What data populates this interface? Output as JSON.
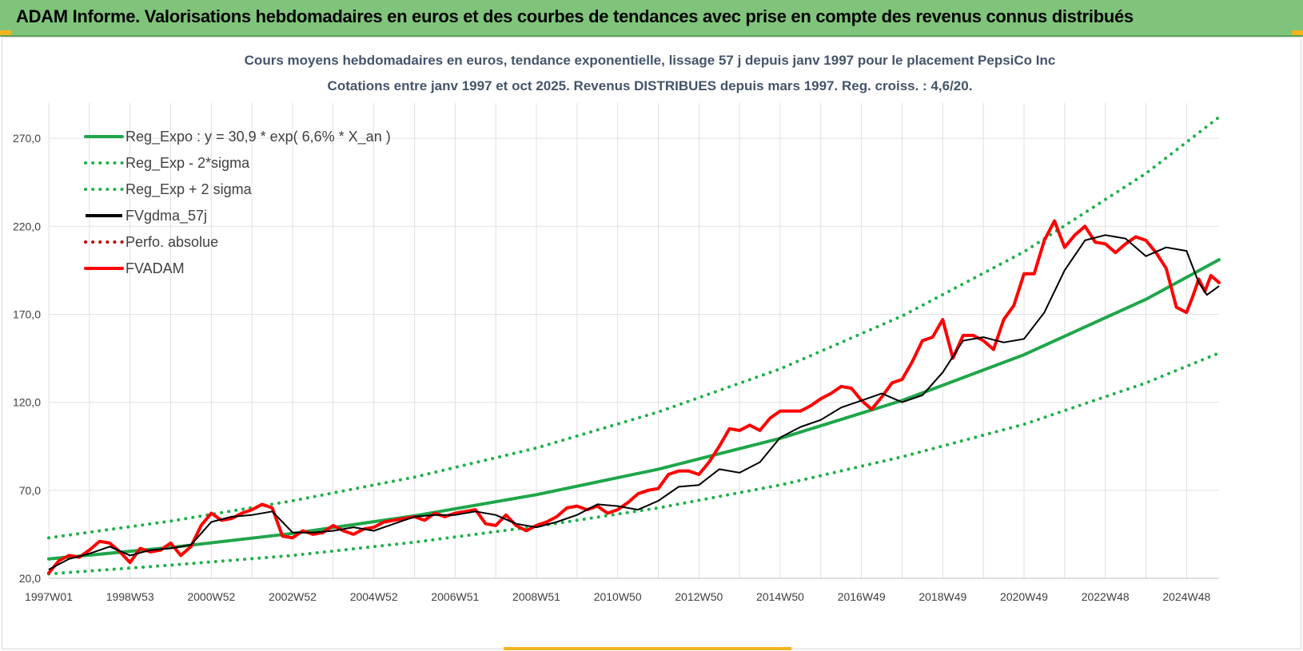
{
  "header": {
    "title": "ADAM Informe. Valorisations hebdomadaires en euros et des courbes de tendances avec prise en compte des revenus connus distribués"
  },
  "colors": {
    "header_bg": "#7fc47a",
    "trend_green": "#1fa64a",
    "band_green": "#21b04b",
    "smooth_black": "#000000",
    "perf_red": "#c00000",
    "adam_red": "#ff0000",
    "grid": "#e0e0e0"
  },
  "chart_data": {
    "type": "line",
    "title_line1": "Cours moyens hebdomadaires en euros, tendance exponentielle, lissage 57 j depuis janv 1997 pour le placement PepsiCo Inc",
    "title_line2": "Cotations entre janv 1997 et oct 2025. Revenus DISTRIBUES depuis mars 1997. Reg. croiss. : 4,6/20.",
    "xlabel": "",
    "ylabel": "",
    "x_range": [
      1997.0,
      2025.8
    ],
    "ylim": [
      20,
      290
    ],
    "y_ticks": [
      "20,0",
      "70,0",
      "120,0",
      "170,0",
      "220,0",
      "270,0"
    ],
    "y_tick_values": [
      20,
      70,
      120,
      170,
      220,
      270
    ],
    "x_tick_labels": [
      "1997W01",
      "1998W53",
      "2000W52",
      "2002W52",
      "2004W52",
      "2006W51",
      "2008W51",
      "2010W50",
      "2012W50",
      "2014W50",
      "2016W49",
      "2018W49",
      "2020W49",
      "2022W48",
      "2024W48"
    ],
    "x_tick_values": [
      1997.0,
      1999.0,
      2001.0,
      2003.0,
      2005.0,
      2007.0,
      2009.0,
      2011.0,
      2013.0,
      2015.0,
      2017.0,
      2019.0,
      2021.0,
      2023.0,
      2025.0
    ],
    "grid": true,
    "legend_position": "top-left",
    "series": [
      {
        "name": "Reg_Expo : y = 30,9 * exp( 6,6% *  X_an )",
        "style": "solid-thick",
        "color": "#1fa64a",
        "x": [
          1997.0,
          2000.0,
          2003.0,
          2006.0,
          2009.0,
          2012.0,
          2015.0,
          2018.0,
          2021.0,
          2024.0,
          2025.8
        ],
        "y": [
          31.0,
          37.5,
          45.5,
          55.5,
          67.5,
          82.0,
          99.5,
          121.0,
          147.0,
          178.5,
          201.0
        ]
      },
      {
        "name": "Reg_Exp - 2*sigma",
        "style": "dotted",
        "color": "#21b04b",
        "x": [
          1997.0,
          2000.0,
          2003.0,
          2006.0,
          2009.0,
          2012.0,
          2015.0,
          2018.0,
          2021.0,
          2024.0,
          2025.8
        ],
        "y": [
          22.5,
          27.5,
          33.0,
          40.5,
          49.5,
          60.0,
          73.0,
          89.0,
          107.5,
          131.0,
          148.0
        ]
      },
      {
        "name": "Reg_Exp + 2 sigma",
        "style": "dotted",
        "color": "#21b04b",
        "x": [
          1997.0,
          2000.0,
          2003.0,
          2006.0,
          2009.0,
          2012.0,
          2015.0,
          2018.0,
          2021.0,
          2024.0,
          2025.8
        ],
        "y": [
          43.0,
          52.5,
          64.0,
          77.5,
          94.0,
          114.5,
          139.0,
          169.0,
          205.5,
          250.0,
          282.0
        ]
      },
      {
        "name": "FVgdma_57j",
        "style": "solid",
        "color": "#000000",
        "x": [
          1997.0,
          1997.5,
          1998.0,
          1998.5,
          1999.0,
          1999.5,
          2000.0,
          2000.5,
          2001.0,
          2001.5,
          2002.0,
          2002.5,
          2003.0,
          2003.5,
          2004.0,
          2004.5,
          2005.0,
          2005.5,
          2006.0,
          2006.5,
          2007.0,
          2007.5,
          2008.0,
          2008.5,
          2009.0,
          2009.5,
          2010.0,
          2010.5,
          2011.0,
          2011.5,
          2012.0,
          2012.5,
          2013.0,
          2013.5,
          2014.0,
          2014.5,
          2015.0,
          2015.5,
          2016.0,
          2016.5,
          2017.0,
          2017.5,
          2018.0,
          2018.5,
          2019.0,
          2019.5,
          2020.0,
          2020.5,
          2021.0,
          2021.5,
          2022.0,
          2022.5,
          2023.0,
          2023.5,
          2024.0,
          2024.5,
          2025.0,
          2025.3,
          2025.5,
          2025.8
        ],
        "y": [
          25.0,
          31.0,
          34.0,
          38.0,
          33.0,
          36.0,
          37.0,
          39.0,
          52.0,
          55.0,
          56.0,
          58.0,
          46.0,
          46.0,
          47.0,
          49.0,
          47.0,
          51.0,
          55.0,
          56.0,
          56.0,
          58.0,
          56.0,
          51.0,
          49.0,
          52.0,
          56.0,
          62.0,
          61.0,
          59.0,
          64.0,
          72.0,
          73.0,
          82.0,
          80.0,
          86.0,
          100.0,
          106.0,
          110.0,
          117.0,
          121.0,
          125.0,
          120.0,
          124.0,
          137.0,
          155.0,
          157.0,
          154.0,
          156.0,
          171.0,
          195.0,
          212.0,
          215.0,
          213.0,
          203.0,
          208.0,
          206.0,
          188.0,
          181.0,
          186.0
        ]
      },
      {
        "name": "Perfo. absolue",
        "style": "dotted",
        "color": "#c00000",
        "x": [],
        "y": []
      },
      {
        "name": "FVADAM",
        "style": "solid-thick",
        "color": "#ff0000",
        "x": [
          1997.0,
          1997.25,
          1997.5,
          1997.75,
          1998.0,
          1998.25,
          1998.5,
          1998.75,
          1999.0,
          1999.25,
          1999.5,
          1999.75,
          2000.0,
          2000.25,
          2000.5,
          2000.75,
          2001.0,
          2001.25,
          2001.5,
          2001.75,
          2002.0,
          2002.25,
          2002.5,
          2002.75,
          2003.0,
          2003.25,
          2003.5,
          2003.75,
          2004.0,
          2004.25,
          2004.5,
          2004.75,
          2005.0,
          2005.25,
          2005.5,
          2005.75,
          2006.0,
          2006.25,
          2006.5,
          2006.75,
          2007.0,
          2007.25,
          2007.5,
          2007.75,
          2008.0,
          2008.25,
          2008.5,
          2008.75,
          2009.0,
          2009.25,
          2009.5,
          2009.75,
          2010.0,
          2010.25,
          2010.5,
          2010.75,
          2011.0,
          2011.25,
          2011.5,
          2011.75,
          2012.0,
          2012.25,
          2012.5,
          2012.75,
          2013.0,
          2013.25,
          2013.5,
          2013.75,
          2014.0,
          2014.25,
          2014.5,
          2014.75,
          2015.0,
          2015.25,
          2015.5,
          2015.75,
          2016.0,
          2016.25,
          2016.5,
          2016.75,
          2017.0,
          2017.25,
          2017.5,
          2017.75,
          2018.0,
          2018.25,
          2018.5,
          2018.75,
          2019.0,
          2019.25,
          2019.5,
          2019.75,
          2020.0,
          2020.25,
          2020.5,
          2020.75,
          2021.0,
          2021.25,
          2021.5,
          2021.75,
          2022.0,
          2022.25,
          2022.5,
          2022.75,
          2023.0,
          2023.25,
          2023.5,
          2023.75,
          2024.0,
          2024.25,
          2024.5,
          2024.75,
          2025.0,
          2025.15,
          2025.3,
          2025.45,
          2025.6,
          2025.8
        ],
        "y": [
          23.0,
          30.0,
          33.0,
          32.0,
          36.0,
          41.0,
          40.0,
          35.0,
          29.0,
          37.0,
          35.0,
          36.0,
          40.0,
          33.0,
          38.0,
          50.0,
          57.0,
          53.0,
          54.0,
          57.0,
          59.0,
          62.0,
          60.0,
          44.0,
          43.0,
          47.0,
          45.0,
          46.0,
          50.0,
          47.0,
          45.0,
          48.0,
          49.0,
          52.0,
          53.0,
          54.0,
          55.0,
          53.0,
          57.0,
          55.0,
          57.0,
          58.0,
          59.0,
          51.0,
          50.0,
          56.0,
          50.0,
          47.0,
          50.0,
          52.0,
          55.0,
          60.0,
          61.0,
          59.0,
          61.0,
          57.0,
          59.0,
          63.0,
          68.0,
          70.0,
          71.0,
          79.0,
          81.0,
          81.0,
          79.0,
          86.0,
          95.0,
          105.0,
          104.0,
          107.0,
          104.0,
          111.0,
          115.0,
          115.0,
          115.0,
          118.0,
          122.0,
          125.0,
          129.0,
          128.0,
          121.0,
          116.0,
          123.0,
          131.0,
          133.0,
          143.0,
          155.0,
          157.0,
          167.0,
          145.0,
          158.0,
          158.0,
          155.0,
          150.0,
          167.0,
          175.0,
          193.0,
          193.0,
          212.0,
          223.0,
          208.0,
          215.0,
          220.0,
          211.0,
          210.0,
          205.0,
          210.0,
          214.0,
          212.0,
          205.0,
          196.0,
          174.0,
          171.0,
          180.0,
          190.0,
          183.0,
          192.0,
          188.0
        ]
      }
    ]
  }
}
